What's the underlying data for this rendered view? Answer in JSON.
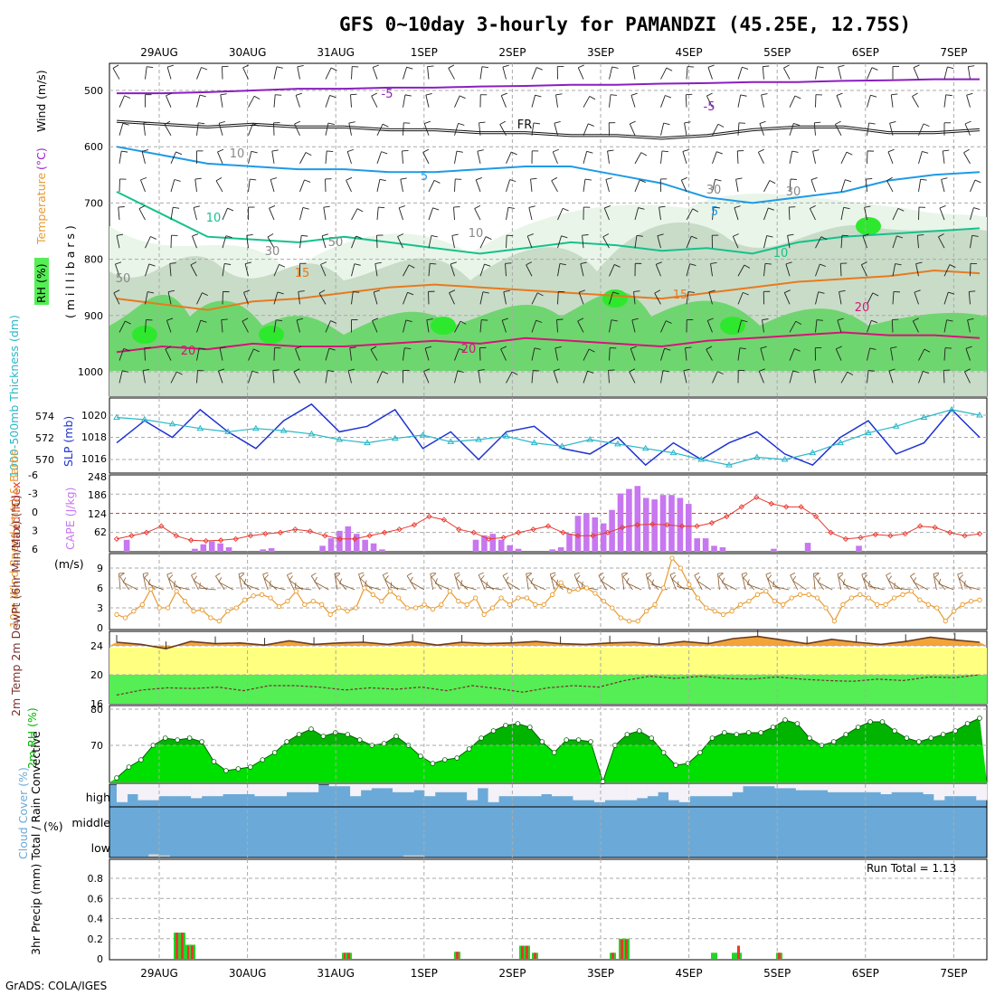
{
  "title": "GFS 0~10day 3-hourly for PAMANDZI (45.25E, 12.75S)",
  "footer": "GrADS: COLA/IGES",
  "run_total_label": "Run Total = 1.13",
  "colors": {
    "grid": "#aaaaaa",
    "wind_barb": "#000000",
    "slp": "#1e32d2",
    "thickness": "#2ab7c8",
    "lifted_index": "#e8382f",
    "cape": "#c777ef",
    "wind10": "#e89a2f",
    "barb10": "#8b5a2b",
    "temp_fill": "#f3a437",
    "temp_line": "#6b3b1f",
    "band_yellow": "#ffff80",
    "band_green": "#55ee55",
    "rh_dark": "#00b400",
    "rh_light": "#00e000",
    "cloud": "#6baad8",
    "cloud_clear": "#f4f2f8",
    "cloud_low": "#d2d2d2",
    "rain_total": "#28d228",
    "rain_conv": "#e8382f"
  },
  "chart_data": [
    {
      "panel": "upper-air",
      "type": "contour",
      "dates": [
        "29AUG",
        "30AUG",
        "31AUG",
        "1SEP",
        "2SEP",
        "3SEP",
        "4SEP",
        "5SEP",
        "6SEP",
        "7SEP"
      ],
      "y_ticks": [
        "500",
        "600",
        "700",
        "800",
        "900",
        "1000"
      ],
      "ylim": [
        1050,
        450
      ],
      "ylabel_parts": [
        "RH (%)",
        "Temperature",
        "(°C)",
        "Wind",
        "(m/s)"
      ],
      "ylabel_unit": "( m i l l i b a r s )",
      "contour_labels": [
        "-5",
        "-5",
        "FR",
        "5",
        "5",
        "10",
        "10",
        "15",
        "15",
        "20",
        "20",
        "20",
        "30",
        "30",
        "30",
        "50",
        "50",
        "10",
        "10"
      ],
      "temperature_isotherms": [
        {
          "label": "-5",
          "p": [
            505,
            505,
            503,
            500,
            497,
            497,
            495,
            495,
            493,
            492,
            490,
            490,
            488,
            487,
            485,
            485,
            483,
            482,
            480,
            480
          ]
        },
        {
          "label": "FR",
          "p": [
            555,
            560,
            565,
            560,
            565,
            565,
            570,
            570,
            575,
            575,
            580,
            580,
            585,
            580,
            570,
            565,
            565,
            575,
            575,
            570
          ]
        },
        {
          "label": "5",
          "p": [
            600,
            615,
            630,
            635,
            640,
            640,
            645,
            645,
            640,
            635,
            635,
            650,
            665,
            690,
            700,
            690,
            680,
            660,
            650,
            645
          ]
        },
        {
          "label": "10",
          "p": [
            680,
            720,
            760,
            765,
            770,
            760,
            770,
            780,
            790,
            780,
            770,
            775,
            785,
            780,
            790,
            770,
            760,
            755,
            750,
            745
          ]
        },
        {
          "label": "15",
          "p": [
            870,
            880,
            890,
            875,
            870,
            860,
            850,
            845,
            850,
            855,
            860,
            865,
            870,
            860,
            850,
            840,
            835,
            830,
            820,
            825
          ]
        },
        {
          "label": "20",
          "p": [
            965,
            955,
            960,
            950,
            955,
            955,
            950,
            945,
            950,
            940,
            945,
            950,
            955,
            945,
            940,
            935,
            930,
            935,
            935,
            940
          ]
        }
      ]
    },
    {
      "panel": "slp-thickness",
      "type": "line",
      "ylabel_left": "1000-500mb Thickness (dm)",
      "ylabel_right": "SLP (mb)",
      "thickness_ticks": [
        "574",
        "572",
        "570"
      ],
      "slp_ticks": [
        "1020",
        "1018",
        "1016"
      ],
      "series": [
        {
          "name": "SLP",
          "values": [
            1017.5,
            1019.5,
            1018,
            1020.5,
            1018.5,
            1017,
            1019.5,
            1021,
            1018.5,
            1019,
            1020.5,
            1017,
            1018.5,
            1016,
            1018.5,
            1019,
            1017,
            1016.5,
            1018,
            1015.5,
            1017.5,
            1016,
            1017.5,
            1018.5,
            1016.5,
            1015.5,
            1018,
            1019.5,
            1016.5,
            1017.5,
            1020.5,
            1018
          ]
        },
        {
          "name": "Thickness",
          "values": [
            573.8,
            573.6,
            573.2,
            572.8,
            572.5,
            572.8,
            572.6,
            572.3,
            571.8,
            571.5,
            571.9,
            572.2,
            571.6,
            571.8,
            572.1,
            571.5,
            571.2,
            571.8,
            571.4,
            571.0,
            570.6,
            570.0,
            569.5,
            570.2,
            570.0,
            570.6,
            571.5,
            572.4,
            573.0,
            573.8,
            574.5,
            574.0
          ]
        }
      ]
    },
    {
      "panel": "li-cape",
      "type": "bar",
      "ylabel_left": "Lifted Index",
      "ylabel_right": "CAPE (J/kg)",
      "li_ticks": [
        "-6",
        "-3",
        "0",
        "3",
        "6"
      ],
      "cape_ticks": [
        "248",
        "186",
        "124",
        "62"
      ],
      "cape": [
        5,
        40,
        5,
        3,
        2,
        5,
        5,
        4,
        7,
        10,
        25,
        35,
        28,
        15,
        4,
        0,
        3,
        8,
        12,
        5,
        4,
        3,
        5,
        6,
        20,
        45,
        70,
        85,
        60,
        40,
        28,
        8,
        3,
        4,
        2,
        4,
        6,
        5,
        3,
        4,
        4,
        5,
        40,
        55,
        60,
        40,
        22,
        10,
        5,
        4,
        3,
        8,
        15,
        60,
        120,
        130,
        115,
        95,
        140,
        195,
        210,
        220,
        180,
        175,
        190,
        190,
        180,
        160,
        45,
        45,
        20,
        15,
        4,
        6,
        3,
        2,
        6,
        10,
        6,
        4,
        5,
        30,
        3,
        2,
        2,
        2,
        3,
        20,
        3,
        3,
        4,
        3,
        2,
        2,
        2,
        3,
        2,
        3,
        4,
        5,
        3,
        2
      ],
      "lifted_index": [
        4,
        3.5,
        3,
        2,
        3.5,
        4.2,
        4.3,
        4.2,
        4,
        3.5,
        3.2,
        3,
        2.5,
        2.8,
        3.5,
        4,
        4,
        3.5,
        3,
        2.5,
        1.8,
        0.5,
        1,
        2.5,
        3,
        4,
        3.8,
        3,
        2.5,
        2,
        3,
        3.5,
        3.5,
        3,
        2.2,
        1.8,
        1.7,
        1.8,
        2,
        2,
        1.5,
        0.5,
        -1,
        -2.5,
        -1.5,
        -1,
        -1,
        0.5,
        3,
        4,
        3.8,
        3.3,
        3.5,
        3.2,
        2,
        2.2,
        3,
        3.5,
        3.2
      ]
    },
    {
      "panel": "wind10m",
      "type": "line",
      "ylabel": "10m Wind Speed (m/s) & Barbs",
      "y_ticks": [
        "9",
        "6",
        "3",
        "0"
      ],
      "series": [
        {
          "name": "Speed",
          "values": [
            2,
            1.5,
            2.5,
            3.5,
            5.8,
            3,
            3,
            5.5,
            4,
            2.5,
            2.7,
            1.5,
            1,
            2.5,
            3,
            4.2,
            4.8,
            5,
            4.5,
            3.2,
            4,
            5.5,
            3.5,
            4,
            3.5,
            2,
            3,
            2.5,
            3,
            6,
            5,
            4,
            5.5,
            4.5,
            3,
            3,
            3.5,
            2.8,
            3.5,
            5.5,
            4,
            3.5,
            4.5,
            2,
            3,
            4.5,
            3.5,
            4.5,
            4.5,
            3.5,
            3.5,
            5,
            6.8,
            5.5,
            5.8,
            6,
            5.2,
            4,
            3,
            1.5,
            1,
            1,
            2.5,
            3.5,
            6,
            10.5,
            9,
            6.5,
            4.5,
            3,
            2.5,
            2,
            2.5,
            3.5,
            4,
            5,
            5.5,
            4,
            3.5,
            4.5,
            5,
            5,
            4.5,
            3,
            1,
            3.5,
            4.5,
            5,
            4.5,
            3.5,
            3.5,
            4.5,
            5,
            5.5,
            4.2,
            3.5,
            3,
            1,
            2.5,
            3.5,
            4,
            4.2
          ]
        }
      ]
    },
    {
      "panel": "temp2m",
      "type": "area",
      "ylabel": "2m Temp 2m DewPt (6hr Min/Max) (°C)",
      "y_ticks": [
        "24",
        "20",
        "16"
      ],
      "series": [
        {
          "name": "Temperature",
          "values": [
            24.5,
            24.2,
            23.6,
            24.6,
            24.3,
            24.4,
            24.1,
            24.7,
            24.2,
            24.4,
            24.5,
            24.2,
            24.6,
            24.1,
            24.5,
            24.3,
            24.4,
            24.6,
            24.3,
            24.2,
            24.4,
            24.5,
            24.2,
            24.6,
            24.3,
            25,
            25.3,
            24.8,
            24.3,
            24.9,
            24.5,
            24.2,
            24.6,
            25.2,
            24.8,
            24.5
          ]
        },
        {
          "name": "DewPt",
          "values": [
            17.2,
            17.9,
            18.2,
            18.1,
            18.3,
            17.8,
            18.5,
            18.5,
            18.3,
            17.9,
            18.2,
            18,
            18.3,
            17.8,
            18.5,
            18.1,
            17.6,
            18.2,
            18.5,
            18.3,
            19.2,
            19.8,
            19.5,
            19.8,
            19.5,
            19.4,
            19.7,
            19.4,
            19.2,
            19.1,
            19.4,
            19.2,
            19.7,
            19.6,
            20
          ]
        }
      ]
    },
    {
      "panel": "rh2m",
      "type": "area",
      "ylabel": "2m RH (%)",
      "y_ticks": [
        "80",
        "70"
      ],
      "series": [
        {
          "name": "RH",
          "values": [
            61,
            64,
            66,
            70,
            72,
            71.5,
            72,
            71,
            65.5,
            63,
            63.5,
            64,
            66,
            68,
            71,
            73,
            74.5,
            72.5,
            73.5,
            73,
            71.5,
            70,
            70.5,
            72.5,
            70,
            67,
            65,
            66,
            66.5,
            69,
            72,
            74,
            75.5,
            76,
            75,
            71,
            68,
            71.5,
            71.5,
            71,
            60,
            70,
            73,
            74,
            72,
            68,
            64.5,
            65,
            68,
            72,
            73.5,
            73,
            73.5,
            73.5,
            75,
            77,
            76,
            72,
            70,
            71,
            73,
            75,
            76.5,
            76.5,
            74,
            72,
            71,
            72,
            73,
            74,
            76,
            77.5
          ]
        }
      ]
    },
    {
      "panel": "cloud",
      "type": "heatmap",
      "ylabel": "Cloud Cover (%)",
      "levels": [
        "high",
        "middle",
        "low"
      ],
      "high": [
        10,
        50,
        20,
        20,
        40,
        40,
        40,
        30,
        40,
        40,
        50,
        50,
        50,
        40,
        40,
        40,
        60,
        60,
        60,
        100,
        90,
        90,
        40,
        70,
        80,
        80,
        60,
        60,
        70,
        40,
        60,
        60,
        60,
        20,
        80,
        10,
        40,
        40,
        40,
        40,
        50,
        40,
        40,
        20,
        20,
        10,
        20,
        20,
        20,
        30,
        40,
        60,
        20,
        10,
        40,
        40,
        40,
        40,
        60,
        90,
        90,
        90,
        80,
        80,
        70,
        70,
        70,
        60,
        60,
        60,
        60,
        60,
        50,
        60,
        60,
        60,
        50,
        20,
        40,
        40,
        40,
        20
      ],
      "middle": [
        0,
        0,
        0,
        0,
        0,
        0,
        0,
        0,
        0,
        0,
        0,
        0,
        0,
        0,
        0,
        0,
        0,
        0,
        0,
        0,
        0,
        0,
        0,
        0,
        0,
        0,
        0,
        0,
        0,
        0,
        0,
        0,
        0,
        0,
        0,
        0,
        0,
        0,
        0,
        0,
        0,
        0,
        0,
        0,
        0,
        0,
        0,
        0,
        0,
        0,
        0,
        0,
        0,
        0,
        0,
        0,
        0,
        0,
        0,
        0,
        0,
        0,
        0,
        0,
        0,
        0,
        0,
        0,
        0,
        0,
        0,
        0,
        0,
        0,
        0,
        0,
        0,
        0,
        0,
        0,
        0,
        0
      ],
      "low": [
        0,
        0,
        0,
        10,
        5,
        0,
        0,
        0,
        0,
        0,
        0,
        0,
        0,
        0,
        0,
        0,
        0,
        0,
        0,
        0,
        0,
        0,
        0,
        0,
        0,
        0,
        0,
        5,
        5,
        0,
        0,
        0,
        0,
        0,
        0,
        0,
        0,
        0,
        0,
        0,
        0,
        0,
        0,
        0,
        0,
        0,
        0,
        0,
        0,
        0,
        0,
        0,
        0,
        0,
        0,
        0,
        0,
        0,
        0,
        0,
        0,
        0,
        0,
        0,
        0,
        0,
        0,
        0,
        0,
        0,
        0,
        0,
        0,
        0,
        0,
        0,
        0,
        0,
        0,
        0,
        0,
        0
      ]
    },
    {
      "panel": "precip",
      "type": "bar",
      "ylabel": "3hr Precip (mm) Total / Rain Convective",
      "y_ticks": [
        "0.8",
        "0.6",
        "0.4",
        "0.2",
        "0"
      ],
      "ylim": [
        0,
        0.95
      ],
      "dates": [
        "29AUG",
        "30AUG",
        "31AUG",
        "1SEP",
        "2SEP",
        "3SEP",
        "4SEP",
        "5SEP",
        "6SEP",
        "7SEP"
      ],
      "bars": [
        {
          "t": 195,
          "total": 0.26,
          "convective": 0.26
        },
        {
          "t": 201,
          "total": 0.26,
          "convective": 0.26
        },
        {
          "t": 208,
          "total": 0.14,
          "convective": 0.13
        },
        {
          "t": 212,
          "total": 0.14,
          "convective": 0.13
        },
        {
          "t": 381,
          "total": 0.06,
          "convective": 0.06
        },
        {
          "t": 385,
          "total": 0.06,
          "convective": 0.06
        },
        {
          "t": 505,
          "total": 0.07,
          "convective": 0.07
        },
        {
          "t": 577,
          "total": 0.13,
          "convective": 0.13
        },
        {
          "t": 582,
          "total": 0.13,
          "convective": 0.13
        },
        {
          "t": 591,
          "total": 0.06,
          "convective": 0.06
        },
        {
          "t": 677,
          "total": 0.06,
          "convective": 0.06
        },
        {
          "t": 687,
          "total": 0.2,
          "convective": 0.19
        },
        {
          "t": 692,
          "total": 0.2,
          "convective": 0.19
        },
        {
          "t": 789,
          "total": 0.06,
          "convective": 0.0
        },
        {
          "t": 812,
          "total": 0.06,
          "convective": 0.0
        },
        {
          "t": 816,
          "total": 0.06,
          "convective": 0.13
        },
        {
          "t": 861,
          "total": 0.06,
          "convective": 0.06
        }
      ]
    }
  ]
}
